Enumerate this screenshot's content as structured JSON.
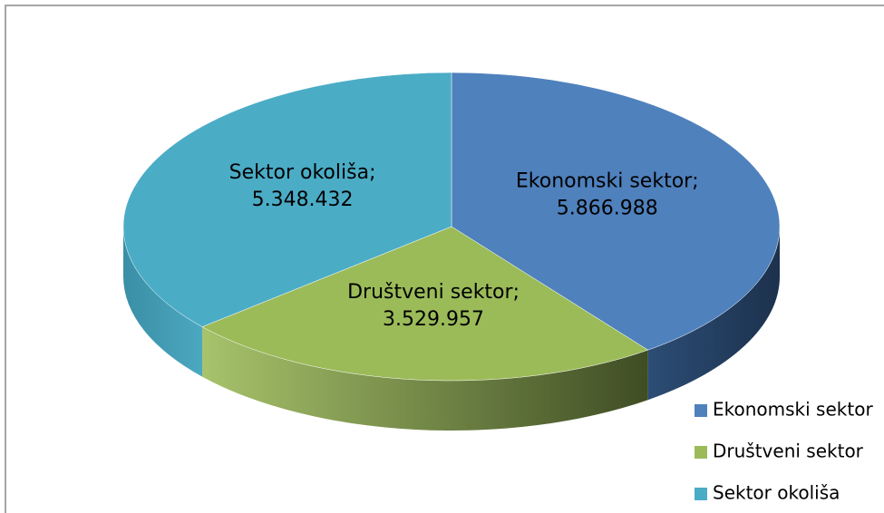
{
  "chart_data": {
    "type": "pie",
    "style": "3d",
    "categories": [
      "Ekonomski sektor",
      "Društveni sektor",
      "Sektor okoliša"
    ],
    "values": [
      5866988,
      3529957,
      5348432
    ],
    "value_labels": [
      "5.866.988",
      "3.529.957",
      "5.348.432"
    ],
    "label_separator": ";",
    "colors": [
      "#4f81bd",
      "#9bbb59",
      "#4bacc6"
    ],
    "legend": "right"
  }
}
